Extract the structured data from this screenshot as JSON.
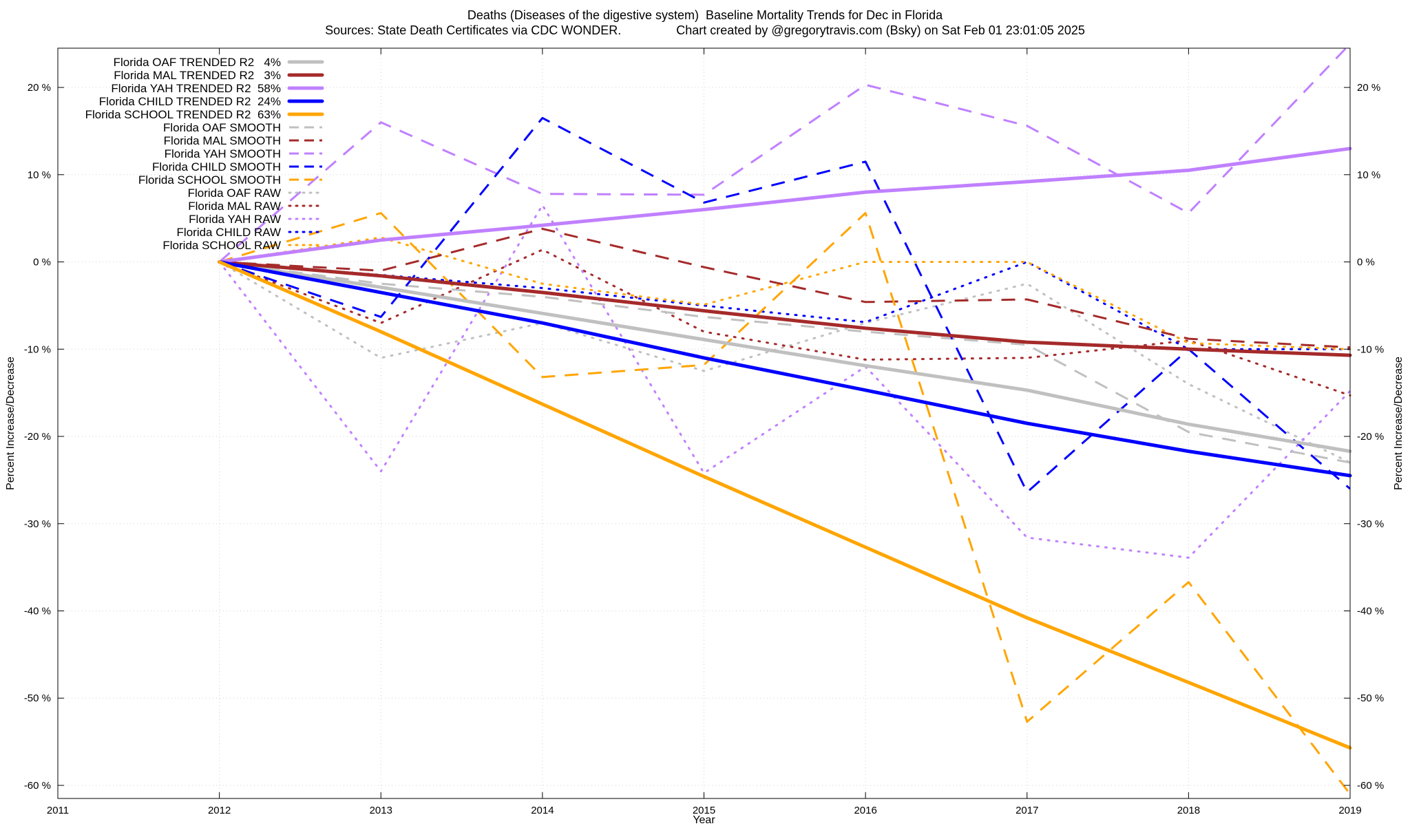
{
  "chart_data": {
    "type": "line",
    "title": "Deaths (Diseases of the digestive system)  Baseline Mortality Trends for Dec in Florida",
    "subtitle": "Sources: State Death Certificates via CDC WONDER.                Chart created by @gregorytravis.com (Bsky) on Sat Feb 01 23:01:05 2025",
    "xlabel": "Year",
    "ylabel": "Percent Increase/Decrease",
    "ylabel_right": "Percent Increase/Decrease",
    "xlim": [
      2011,
      2019
    ],
    "ylim": [
      -61.5,
      24.5
    ],
    "x_ticks": [
      2011,
      2012,
      2013,
      2014,
      2015,
      2016,
      2017,
      2018,
      2019
    ],
    "y_ticks": [
      20,
      10,
      0,
      -10,
      -20,
      -30,
      -40,
      -50,
      -60
    ],
    "y_tick_labels": [
      "20 %",
      "10 %",
      "0 %",
      "-10 %",
      "-20 %",
      "-30 %",
      "-40 %",
      "-50 %",
      "-60 %"
    ],
    "grid": true,
    "legend_position": "top-left",
    "x": [
      2012,
      2013,
      2014,
      2015,
      2016,
      2017,
      2018,
      2019
    ],
    "series": [
      {
        "name": "Florida OAF TRENDED R2   4%",
        "style": "solid",
        "color": "#c0c0c0",
        "values": [
          0,
          -2.9,
          -5.9,
          -8.9,
          -11.9,
          -14.7,
          -18.6,
          -21.7
        ]
      },
      {
        "name": "Florida MAL TRENDED R2   3%",
        "style": "solid",
        "color": "#a52a2a",
        "values": [
          0,
          -1.6,
          -3.5,
          -5.6,
          -7.6,
          -9.2,
          -10.0,
          -10.7
        ]
      },
      {
        "name": "Florida YAH TRENDED R2  58%",
        "style": "solid",
        "color": "#c080ff",
        "values": [
          0,
          2.5,
          4.2,
          6.0,
          8.0,
          9.2,
          10.5,
          13.0
        ]
      },
      {
        "name": "Florida CHILD TRENDED R2  24%",
        "style": "solid",
        "color": "#0000ff",
        "values": [
          0,
          -3.5,
          -7.0,
          -11.0,
          -14.7,
          -18.5,
          -21.7,
          -24.5
        ]
      },
      {
        "name": "Florida SCHOOL TRENDED R2  63%",
        "style": "solid",
        "color": "#ffa500",
        "values": [
          0,
          -8.0,
          -16.3,
          -24.6,
          -32.7,
          -40.8,
          -48.2,
          -55.7
        ]
      },
      {
        "name": "Florida OAF SMOOTH",
        "style": "dashed",
        "color": "#c0c0c0",
        "values": [
          0,
          -2.5,
          -4.0,
          -6.3,
          -8.0,
          -9.5,
          -19.5,
          -23.0
        ]
      },
      {
        "name": "Florida MAL SMOOTH",
        "style": "dashed",
        "color": "#a52a2a",
        "values": [
          0,
          -1.0,
          3.8,
          -0.6,
          -4.6,
          -4.3,
          -8.8,
          -9.8
        ]
      },
      {
        "name": "Florida YAH SMOOTH",
        "style": "dashed",
        "color": "#c080ff",
        "values": [
          0,
          16.0,
          7.8,
          7.7,
          20.3,
          15.6,
          5.6,
          25.0
        ]
      },
      {
        "name": "Florida CHILD SMOOTH",
        "style": "dashed",
        "color": "#0000ff",
        "values": [
          0,
          -6.3,
          16.5,
          6.8,
          11.5,
          -26.4,
          -10.0,
          -26.0
        ]
      },
      {
        "name": "Florida SCHOOL SMOOTH",
        "style": "dashed",
        "color": "#ffa500",
        "values": [
          0,
          5.6,
          -13.2,
          -11.8,
          5.6,
          -52.7,
          -36.7,
          -61.0
        ]
      },
      {
        "name": "Florida OAF RAW",
        "style": "dotted",
        "color": "#c0c0c0",
        "values": [
          0,
          -11.0,
          -7.0,
          -12.5,
          -7.0,
          -2.5,
          -14.0,
          -23.0
        ]
      },
      {
        "name": "Florida MAL RAW",
        "style": "dotted",
        "color": "#a52a2a",
        "values": [
          0,
          -7.0,
          1.4,
          -8.0,
          -11.2,
          -11.0,
          -9.0,
          -15.3
        ]
      },
      {
        "name": "Florida YAH RAW",
        "style": "dotted",
        "color": "#c080ff",
        "values": [
          0,
          -24.0,
          6.5,
          -24.2,
          -12.0,
          -31.6,
          -33.9,
          -14.8
        ]
      },
      {
        "name": "Florida CHILD RAW",
        "style": "dotted",
        "color": "#0000ff",
        "values": [
          0,
          -1.5,
          -3.0,
          -5.0,
          -6.9,
          0,
          -10.0,
          -10.0
        ]
      },
      {
        "name": "Florida SCHOOL RAW",
        "style": "dotted",
        "color": "#ffa500",
        "values": [
          0,
          2.8,
          -2.5,
          -4.9,
          0,
          0,
          -9.3,
          -10.0
        ]
      }
    ]
  }
}
